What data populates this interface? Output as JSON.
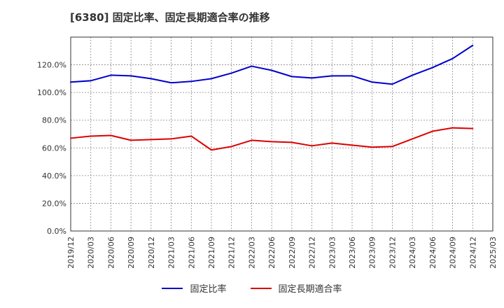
{
  "chart_data": {
    "type": "line",
    "title": "[6380]  固定比率、固定長期適合率の推移",
    "x": [
      "2019/12",
      "2020/03",
      "2020/06",
      "2020/09",
      "2020/12",
      "2021/03",
      "2021/06",
      "2021/09",
      "2021/12",
      "2022/03",
      "2022/06",
      "2022/09",
      "2022/12",
      "2023/03",
      "2023/06",
      "2023/09",
      "2023/12",
      "2024/03",
      "2024/06",
      "2024/09",
      "2024/12",
      "2025/03"
    ],
    "series": [
      {
        "name": "固定比率",
        "color": "#0000cc",
        "values": [
          107.5,
          108.5,
          112.5,
          112.0,
          110.0,
          107.0,
          108.0,
          110.0,
          114.0,
          119.0,
          116.0,
          111.5,
          110.5,
          112.0,
          112.0,
          107.5,
          106.0,
          112.5,
          118.0,
          124.5,
          134.0,
          null
        ]
      },
      {
        "name": "固定長期適合率",
        "color": "#dd0000",
        "values": [
          67.0,
          68.5,
          69.0,
          65.5,
          66.0,
          66.5,
          68.5,
          58.5,
          61.0,
          65.5,
          64.5,
          64.0,
          61.5,
          63.5,
          62.0,
          60.5,
          61.0,
          66.5,
          72.0,
          74.5,
          74.0,
          null
        ]
      }
    ],
    "ylim": [
      0,
      140
    ],
    "yticks": [
      0,
      20,
      40,
      60,
      80,
      100,
      120
    ],
    "ytick_labels": [
      "0.0%",
      "20.0%",
      "40.0%",
      "60.0%",
      "80.0%",
      "100.0%",
      "120.0%"
    ],
    "grid": true,
    "legend_position": "bottom"
  }
}
